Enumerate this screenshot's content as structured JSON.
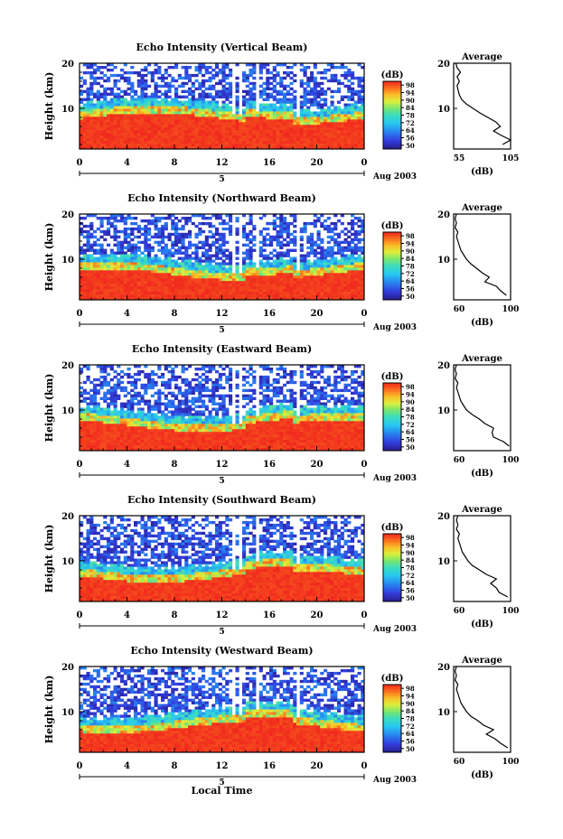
{
  "figure": {
    "bottom_xlabel": "Local Time"
  },
  "chart_data": [
    {
      "type": "heatmap",
      "title": "Echo Intensity (Vertical Beam)",
      "ylabel": "Height (km)",
      "xticks": [
        "0",
        "4",
        "8",
        "12",
        "16",
        "20",
        "0"
      ],
      "yticks": [
        "10",
        "20"
      ],
      "xlim": [
        0,
        24
      ],
      "ylim": [
        1,
        20
      ],
      "date_label": "Aug 2003",
      "date_marker": "5",
      "colorbar": {
        "label": "(dB)",
        "ticks": [
          "50",
          "56",
          "64",
          "72",
          "78",
          "84",
          "90",
          "94",
          "98"
        ],
        "range": [
          50,
          100
        ]
      },
      "profile": {
        "title": "Average",
        "xlabel": "(dB)",
        "xticks": [
          "55",
          "105"
        ],
        "yticks": [
          "10",
          "20"
        ],
        "xlim": [
          55,
          105
        ],
        "ylim": [
          1,
          20
        ],
        "points": [
          [
            98,
            2
          ],
          [
            105,
            3
          ],
          [
            97,
            4
          ],
          [
            90,
            5
          ],
          [
            96,
            6
          ],
          [
            92,
            7
          ],
          [
            85,
            8
          ],
          [
            78,
            9
          ],
          [
            72,
            10
          ],
          [
            66,
            11
          ],
          [
            62,
            12
          ],
          [
            60,
            13
          ],
          [
            59,
            14
          ],
          [
            58,
            15
          ],
          [
            60,
            16
          ],
          [
            58,
            17
          ],
          [
            61,
            18
          ],
          [
            58,
            19
          ],
          [
            57,
            20
          ]
        ]
      }
    },
    {
      "type": "heatmap",
      "title": "Echo Intensity (Northward Beam)",
      "ylabel": "Height (km)",
      "xticks": [
        "0",
        "4",
        "8",
        "12",
        "16",
        "20",
        "0"
      ],
      "yticks": [
        "10",
        "20"
      ],
      "xlim": [
        0,
        24
      ],
      "ylim": [
        1,
        20
      ],
      "date_label": "Aug 2003",
      "date_marker": "5",
      "colorbar": {
        "label": "(dB)",
        "ticks": [
          "50",
          "56",
          "64",
          "72",
          "78",
          "84",
          "90",
          "94",
          "98"
        ],
        "range": [
          50,
          100
        ]
      },
      "profile": {
        "title": "Average",
        "xlabel": "(dB)",
        "xticks": [
          "60",
          "100"
        ],
        "yticks": [
          "10",
          "20"
        ],
        "xlim": [
          60,
          100
        ],
        "ylim": [
          1,
          20
        ],
        "points": [
          [
            97,
            2
          ],
          [
            93,
            3
          ],
          [
            90,
            4
          ],
          [
            82,
            5
          ],
          [
            85,
            6
          ],
          [
            80,
            7
          ],
          [
            76,
            8
          ],
          [
            72,
            9
          ],
          [
            69,
            10
          ],
          [
            67,
            11
          ],
          [
            65,
            12
          ],
          [
            64,
            13
          ],
          [
            63,
            14
          ],
          [
            62,
            15
          ],
          [
            63,
            16
          ],
          [
            61,
            17
          ],
          [
            62,
            18
          ],
          [
            61,
            19
          ],
          [
            62,
            20
          ]
        ]
      }
    },
    {
      "type": "heatmap",
      "title": "Echo Intensity (Eastward Beam)",
      "ylabel": "Height (km)",
      "xticks": [
        "0",
        "4",
        "8",
        "12",
        "16",
        "20",
        "0"
      ],
      "yticks": [
        "10",
        "20"
      ],
      "xlim": [
        0,
        24
      ],
      "ylim": [
        1,
        20
      ],
      "date_label": "Aug 2003",
      "date_marker": "5",
      "colorbar": {
        "label": "(dB)",
        "ticks": [
          "50",
          "56",
          "64",
          "72",
          "78",
          "84",
          "90",
          "94",
          "98"
        ],
        "range": [
          50,
          100
        ]
      },
      "profile": {
        "title": "Average",
        "xlabel": "(dB)",
        "xticks": [
          "60",
          "100"
        ],
        "yticks": [
          "10",
          "20"
        ],
        "xlim": [
          60,
          100
        ],
        "ylim": [
          1,
          20
        ],
        "points": [
          [
            99,
            2
          ],
          [
            95,
            3
          ],
          [
            88,
            4
          ],
          [
            87,
            5
          ],
          [
            88,
            6
          ],
          [
            82,
            7
          ],
          [
            78,
            8
          ],
          [
            73,
            9
          ],
          [
            69,
            10
          ],
          [
            67,
            11
          ],
          [
            65,
            12
          ],
          [
            64,
            13
          ],
          [
            63,
            14
          ],
          [
            62,
            15
          ],
          [
            63,
            16
          ],
          [
            61,
            17
          ],
          [
            62,
            18
          ],
          [
            61,
            19
          ],
          [
            62,
            20
          ]
        ]
      }
    },
    {
      "type": "heatmap",
      "title": "Echo Intensity (Southward Beam)",
      "ylabel": "Height (km)",
      "xticks": [
        "0",
        "4",
        "8",
        "12",
        "16",
        "20",
        "0"
      ],
      "yticks": [
        "10",
        "20"
      ],
      "xlim": [
        0,
        24
      ],
      "ylim": [
        1,
        20
      ],
      "date_label": "Aug 2003",
      "date_marker": "5",
      "colorbar": {
        "label": "(dB)",
        "ticks": [
          "50",
          "56",
          "64",
          "72",
          "78",
          "84",
          "90",
          "94",
          "98"
        ],
        "range": [
          50,
          100
        ]
      },
      "profile": {
        "title": "Average",
        "xlabel": "(dB)",
        "xticks": [
          "60",
          "100"
        ],
        "yticks": [
          "10",
          "20"
        ],
        "xlim": [
          60,
          100
        ],
        "ylim": [
          1,
          20
        ],
        "points": [
          [
            98,
            2
          ],
          [
            92,
            3
          ],
          [
            90,
            4
          ],
          [
            86,
            5
          ],
          [
            90,
            6
          ],
          [
            83,
            7
          ],
          [
            78,
            8
          ],
          [
            73,
            9
          ],
          [
            70,
            10
          ],
          [
            68,
            11
          ],
          [
            66,
            12
          ],
          [
            65,
            13
          ],
          [
            64,
            14
          ],
          [
            63,
            15
          ],
          [
            64,
            16
          ],
          [
            62,
            17
          ],
          [
            63,
            18
          ],
          [
            62,
            19
          ],
          [
            63,
            20
          ]
        ]
      }
    },
    {
      "type": "heatmap",
      "title": "Echo Intensity (Westward Beam)",
      "ylabel": "Height (km)",
      "xticks": [
        "0",
        "4",
        "8",
        "12",
        "16",
        "20",
        "0"
      ],
      "yticks": [
        "10",
        "20"
      ],
      "xlim": [
        0,
        24
      ],
      "ylim": [
        1,
        20
      ],
      "date_label": "Aug 2003",
      "date_marker": "5",
      "colorbar": {
        "label": "(dB)",
        "ticks": [
          "50",
          "56",
          "64",
          "72",
          "78",
          "84",
          "90",
          "94",
          "98"
        ],
        "range": [
          50,
          100
        ]
      },
      "profile": {
        "title": "Average",
        "xlabel": "(dB)",
        "xticks": [
          "60",
          "100"
        ],
        "yticks": [
          "10",
          "20"
        ],
        "xlim": [
          60,
          100
        ],
        "ylim": [
          1,
          20
        ],
        "points": [
          [
            98,
            2
          ],
          [
            93,
            3
          ],
          [
            89,
            4
          ],
          [
            83,
            5
          ],
          [
            88,
            6
          ],
          [
            81,
            7
          ],
          [
            77,
            8
          ],
          [
            72,
            9
          ],
          [
            69,
            10
          ],
          [
            67,
            11
          ],
          [
            65,
            12
          ],
          [
            64,
            13
          ],
          [
            63,
            14
          ],
          [
            62,
            15
          ],
          [
            63,
            16
          ],
          [
            61,
            17
          ],
          [
            62,
            18
          ],
          [
            61,
            19
          ],
          [
            62,
            20
          ]
        ]
      }
    }
  ]
}
